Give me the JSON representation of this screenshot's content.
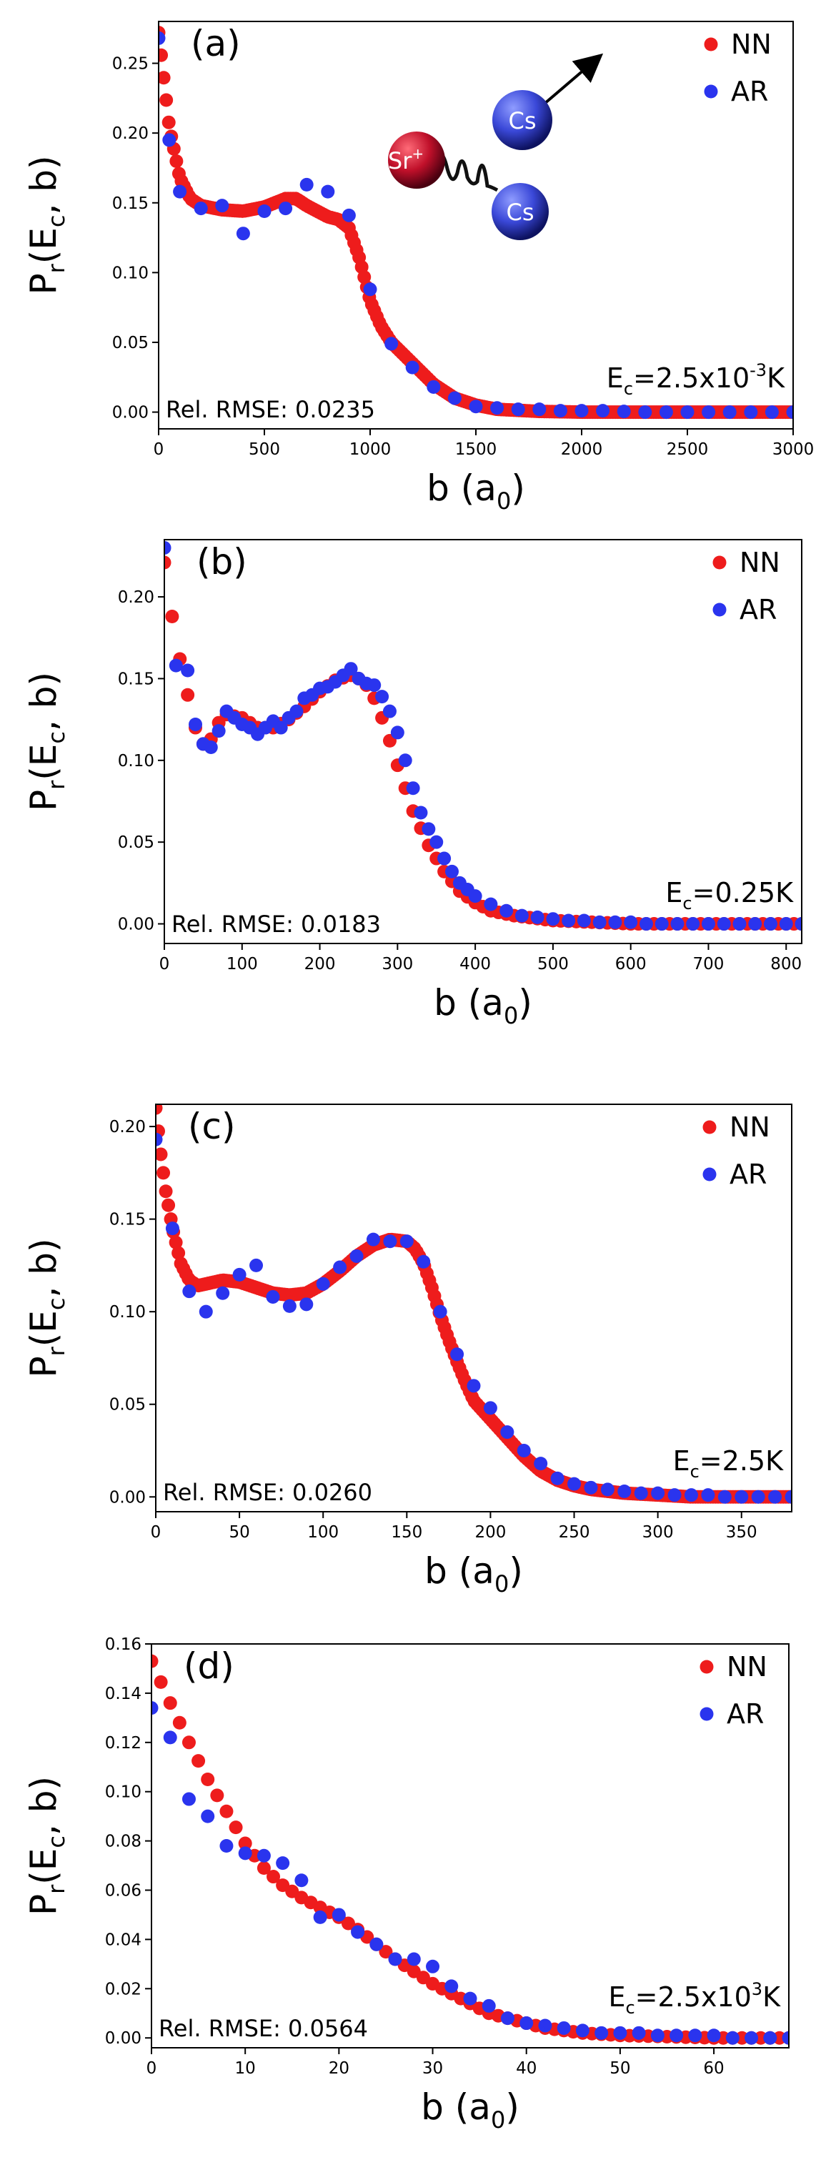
{
  "colors": {
    "nn": "#ee1c1c",
    "ar": "#2a34ee",
    "axis": "#000000",
    "sr": "#c0102a",
    "cs": "#3a48d8"
  },
  "chart_data": [
    {
      "id": "a",
      "type": "scatter",
      "panel_label": "(a)",
      "xlabel": "b (a",
      "xlabel_sub": "0",
      "xlabel_close": ")",
      "ylabel": "P",
      "ylabel_sub1": "r",
      "ylabel_mid": "(E",
      "ylabel_sub2": "c",
      "ylabel_end": ", b)",
      "xlim": [
        0,
        3000
      ],
      "ylim": [
        -0.012,
        0.28
      ],
      "xticks": [
        0,
        500,
        1000,
        1500,
        2000,
        2500,
        3000
      ],
      "xtick_labels": [
        "0",
        "500",
        "1000",
        "1500",
        "2000",
        "2500",
        "3000"
      ],
      "yticks": [
        0.0,
        0.05,
        0.1,
        0.15,
        0.2,
        0.25
      ],
      "ytick_labels": [
        "0.00",
        "0.05",
        "0.10",
        "0.15",
        "0.20",
        "0.25"
      ],
      "legend": [
        "NN",
        "AR"
      ],
      "energy_prefix": "E",
      "energy_sub": "c",
      "energy_value": "=2.5x10",
      "energy_exp": "-3",
      "energy_unit": "K",
      "rmse_label": "Rel. RMSE: 0.0235",
      "inset": {
        "sr_label": "Sr",
        "sr_charge": "+",
        "cs_label": "Cs"
      },
      "nn_step": 12,
      "nn_curve": [
        [
          0,
          0.272
        ],
        [
          20,
          0.245
        ],
        [
          50,
          0.205
        ],
        [
          100,
          0.168
        ],
        [
          150,
          0.153
        ],
        [
          200,
          0.148
        ],
        [
          300,
          0.145
        ],
        [
          400,
          0.144
        ],
        [
          500,
          0.147
        ],
        [
          600,
          0.153
        ],
        [
          650,
          0.153
        ],
        [
          700,
          0.148
        ],
        [
          800,
          0.14
        ],
        [
          850,
          0.138
        ],
        [
          900,
          0.132
        ],
        [
          950,
          0.11
        ],
        [
          1000,
          0.08
        ],
        [
          1050,
          0.062
        ],
        [
          1100,
          0.05
        ],
        [
          1200,
          0.035
        ],
        [
          1300,
          0.02
        ],
        [
          1400,
          0.01
        ],
        [
          1500,
          0.005
        ],
        [
          1600,
          0.002
        ],
        [
          1800,
          0.0005
        ],
        [
          2000,
          0.0
        ],
        [
          3000,
          0.0
        ]
      ],
      "ar": {
        "x": [
          0,
          50,
          100,
          200,
          300,
          400,
          500,
          600,
          700,
          800,
          900,
          1000,
          1100,
          1200,
          1300,
          1400,
          1500,
          1600,
          1700,
          1800,
          1900,
          2000,
          2100,
          2200,
          2300,
          2400,
          2500,
          2600,
          2700,
          2800,
          2900,
          3000
        ],
        "y": [
          0.268,
          0.195,
          0.158,
          0.146,
          0.148,
          0.128,
          0.144,
          0.146,
          0.163,
          0.158,
          0.141,
          0.088,
          0.049,
          0.032,
          0.018,
          0.01,
          0.004,
          0.003,
          0.002,
          0.002,
          0.001,
          0.001,
          0.001,
          0.0005,
          0.0,
          0.0,
          0.0,
          0.0,
          0.0,
          0.0,
          0.0,
          0.0
        ]
      }
    },
    {
      "id": "b",
      "type": "scatter",
      "panel_label": "(b)",
      "xlabel": "b (a",
      "xlabel_sub": "0",
      "xlabel_close": ")",
      "ylabel": "P",
      "ylabel_sub1": "r",
      "ylabel_mid": "(E",
      "ylabel_sub2": "c",
      "ylabel_end": ", b)",
      "xlim": [
        0,
        820
      ],
      "ylim": [
        -0.012,
        0.235
      ],
      "xticks": [
        0,
        100,
        200,
        300,
        400,
        500,
        600,
        700,
        800
      ],
      "xtick_labels": [
        "0",
        "100",
        "200",
        "300",
        "400",
        "500",
        "600",
        "700",
        "800"
      ],
      "yticks": [
        0.0,
        0.05,
        0.1,
        0.15,
        0.2
      ],
      "ytick_labels": [
        "0.00",
        "0.05",
        "0.10",
        "0.15",
        "0.20"
      ],
      "legend": [
        "NN",
        "AR"
      ],
      "energy_prefix": "E",
      "energy_sub": "c",
      "energy_value": "=0.25K",
      "energy_exp": "",
      "energy_unit": "",
      "rmse_label": "Rel. RMSE: 0.0183",
      "nn_step": 10,
      "nn_curve": [
        [
          0,
          0.221
        ],
        [
          10,
          0.188
        ],
        [
          20,
          0.162
        ],
        [
          30,
          0.14
        ],
        [
          40,
          0.12
        ],
        [
          50,
          0.11
        ],
        [
          60,
          0.113
        ],
        [
          70,
          0.123
        ],
        [
          80,
          0.128
        ],
        [
          100,
          0.126
        ],
        [
          120,
          0.12
        ],
        [
          140,
          0.12
        ],
        [
          160,
          0.125
        ],
        [
          180,
          0.133
        ],
        [
          200,
          0.142
        ],
        [
          220,
          0.149
        ],
        [
          240,
          0.152
        ],
        [
          250,
          0.15
        ],
        [
          260,
          0.146
        ],
        [
          270,
          0.138
        ],
        [
          280,
          0.126
        ],
        [
          290,
          0.112
        ],
        [
          300,
          0.097
        ],
        [
          310,
          0.083
        ],
        [
          320,
          0.069
        ],
        [
          340,
          0.048
        ],
        [
          360,
          0.032
        ],
        [
          380,
          0.02
        ],
        [
          400,
          0.013
        ],
        [
          420,
          0.008
        ],
        [
          450,
          0.005
        ],
        [
          500,
          0.002
        ],
        [
          550,
          0.001
        ],
        [
          600,
          0.0
        ],
        [
          820,
          0.0
        ]
      ],
      "ar": {
        "x": [
          0,
          15,
          30,
          40,
          50,
          60,
          70,
          80,
          90,
          100,
          110,
          120,
          130,
          140,
          150,
          160,
          170,
          180,
          190,
          200,
          210,
          220,
          230,
          240,
          250,
          260,
          270,
          280,
          290,
          300,
          310,
          320,
          330,
          340,
          350,
          360,
          370,
          380,
          390,
          400,
          420,
          440,
          460,
          480,
          500,
          520,
          540,
          560,
          580,
          600,
          620,
          640,
          660,
          680,
          700,
          720,
          740,
          760,
          780,
          800,
          820
        ],
        "y": [
          0.23,
          0.158,
          0.155,
          0.122,
          0.11,
          0.108,
          0.118,
          0.13,
          0.126,
          0.122,
          0.12,
          0.116,
          0.12,
          0.124,
          0.12,
          0.126,
          0.13,
          0.138,
          0.14,
          0.144,
          0.145,
          0.148,
          0.152,
          0.156,
          0.15,
          0.147,
          0.146,
          0.139,
          0.13,
          0.117,
          0.1,
          0.083,
          0.068,
          0.058,
          0.05,
          0.04,
          0.032,
          0.025,
          0.021,
          0.017,
          0.012,
          0.008,
          0.005,
          0.004,
          0.003,
          0.002,
          0.002,
          0.001,
          0.001,
          0.001,
          0.0,
          0.0,
          0.0,
          0.0,
          0.0,
          0.0,
          0.0,
          0.0,
          0.0,
          0.0,
          0.0
        ]
      }
    },
    {
      "id": "c",
      "type": "scatter",
      "panel_label": "(c)",
      "xlabel": "b (a",
      "xlabel_sub": "0",
      "xlabel_close": ")",
      "ylabel": "P",
      "ylabel_sub1": "r",
      "ylabel_mid": "(E",
      "ylabel_sub2": "c",
      "ylabel_end": ", b)",
      "xlim": [
        0,
        380
      ],
      "ylim": [
        -0.008,
        0.212
      ],
      "xticks": [
        0,
        50,
        100,
        150,
        200,
        250,
        300,
        350
      ],
      "xtick_labels": [
        "0",
        "50",
        "100",
        "150",
        "200",
        "250",
        "300",
        "350"
      ],
      "yticks": [
        0.0,
        0.05,
        0.1,
        0.15,
        0.2
      ],
      "ytick_labels": [
        "0.00",
        "0.05",
        "0.10",
        "0.15",
        "0.20"
      ],
      "legend": [
        "NN",
        "AR"
      ],
      "energy_prefix": "E",
      "energy_sub": "c",
      "energy_value": "=2.5K",
      "energy_exp": "",
      "energy_unit": "",
      "rmse_label": "Rel. RMSE: 0.0260",
      "nn_step": 1.5,
      "nn_curve": [
        [
          0,
          0.21
        ],
        [
          3,
          0.185
        ],
        [
          6,
          0.165
        ],
        [
          10,
          0.145
        ],
        [
          15,
          0.126
        ],
        [
          20,
          0.117
        ],
        [
          25,
          0.114
        ],
        [
          30,
          0.115
        ],
        [
          40,
          0.117
        ],
        [
          50,
          0.116
        ],
        [
          60,
          0.113
        ],
        [
          70,
          0.11
        ],
        [
          80,
          0.109
        ],
        [
          90,
          0.11
        ],
        [
          100,
          0.115
        ],
        [
          110,
          0.122
        ],
        [
          120,
          0.13
        ],
        [
          130,
          0.136
        ],
        [
          140,
          0.139
        ],
        [
          150,
          0.138
        ],
        [
          155,
          0.134
        ],
        [
          160,
          0.126
        ],
        [
          165,
          0.113
        ],
        [
          170,
          0.098
        ],
        [
          175,
          0.085
        ],
        [
          180,
          0.073
        ],
        [
          185,
          0.062
        ],
        [
          190,
          0.052
        ],
        [
          200,
          0.042
        ],
        [
          210,
          0.032
        ],
        [
          220,
          0.022
        ],
        [
          230,
          0.014
        ],
        [
          240,
          0.009
        ],
        [
          250,
          0.006
        ],
        [
          260,
          0.004
        ],
        [
          280,
          0.002
        ],
        [
          300,
          0.001
        ],
        [
          320,
          0.0
        ],
        [
          380,
          0.0
        ]
      ],
      "ar": {
        "x": [
          0,
          10,
          20,
          30,
          40,
          50,
          60,
          70,
          80,
          90,
          100,
          110,
          120,
          130,
          140,
          150,
          160,
          170,
          180,
          190,
          200,
          210,
          220,
          230,
          240,
          250,
          260,
          270,
          280,
          290,
          300,
          310,
          320,
          330,
          340,
          350,
          360,
          370,
          380
        ],
        "y": [
          0.193,
          0.145,
          0.111,
          0.1,
          0.11,
          0.12,
          0.125,
          0.108,
          0.103,
          0.104,
          0.115,
          0.124,
          0.13,
          0.139,
          0.138,
          0.138,
          0.127,
          0.1,
          0.077,
          0.06,
          0.048,
          0.035,
          0.025,
          0.018,
          0.01,
          0.007,
          0.005,
          0.004,
          0.003,
          0.002,
          0.002,
          0.001,
          0.001,
          0.001,
          0.0,
          0.0,
          0.0,
          0.0,
          0.0
        ]
      }
    },
    {
      "id": "d",
      "type": "scatter",
      "panel_label": "(d)",
      "xlabel": "b (a",
      "xlabel_sub": "0",
      "xlabel_close": ")",
      "ylabel": "P",
      "ylabel_sub1": "r",
      "ylabel_mid": "(E",
      "ylabel_sub2": "c",
      "ylabel_end": ", b)",
      "xlim": [
        0,
        68
      ],
      "ylim": [
        -0.004,
        0.16
      ],
      "xticks": [
        0,
        10,
        20,
        30,
        40,
        50,
        60
      ],
      "xtick_labels": [
        "0",
        "10",
        "20",
        "30",
        "40",
        "50",
        "60"
      ],
      "yticks": [
        0.0,
        0.02,
        0.04,
        0.06,
        0.08,
        0.1,
        0.12,
        0.14,
        0.16
      ],
      "ytick_labels": [
        "0.00",
        "0.02",
        "0.04",
        "0.06",
        "0.08",
        "0.10",
        "0.12",
        "0.14",
        "0.16"
      ],
      "legend": [
        "NN",
        "AR"
      ],
      "energy_prefix": "E",
      "energy_sub": "c",
      "energy_value": "=2.5x10",
      "energy_exp": "3",
      "energy_unit": "K",
      "rmse_label": "Rel. RMSE: 0.0564",
      "nn_step": 1,
      "nn_curve": [
        [
          0,
          0.153
        ],
        [
          2,
          0.136
        ],
        [
          4,
          0.12
        ],
        [
          6,
          0.105
        ],
        [
          8,
          0.092
        ],
        [
          10,
          0.079
        ],
        [
          12,
          0.069
        ],
        [
          14,
          0.062
        ],
        [
          16,
          0.057
        ],
        [
          18,
          0.053
        ],
        [
          20,
          0.049
        ],
        [
          22,
          0.044
        ],
        [
          24,
          0.038
        ],
        [
          26,
          0.032
        ],
        [
          28,
          0.027
        ],
        [
          30,
          0.022
        ],
        [
          32,
          0.018
        ],
        [
          34,
          0.014
        ],
        [
          36,
          0.01
        ],
        [
          38,
          0.008
        ],
        [
          40,
          0.006
        ],
        [
          42,
          0.004
        ],
        [
          44,
          0.003
        ],
        [
          46,
          0.002
        ],
        [
          48,
          0.0015
        ],
        [
          50,
          0.001
        ],
        [
          55,
          0.0005
        ],
        [
          60,
          0.0
        ],
        [
          68,
          0.0
        ]
      ],
      "ar": {
        "x": [
          0,
          2,
          4,
          6,
          8,
          10,
          12,
          14,
          16,
          18,
          20,
          22,
          24,
          26,
          28,
          30,
          32,
          34,
          36,
          38,
          40,
          42,
          44,
          46,
          48,
          50,
          52,
          54,
          56,
          58,
          60,
          62,
          64,
          66,
          68
        ],
        "y": [
          0.134,
          0.122,
          0.097,
          0.09,
          0.078,
          0.075,
          0.074,
          0.071,
          0.064,
          0.049,
          0.05,
          0.043,
          0.038,
          0.032,
          0.032,
          0.029,
          0.021,
          0.016,
          0.013,
          0.008,
          0.006,
          0.005,
          0.004,
          0.003,
          0.002,
          0.002,
          0.002,
          0.001,
          0.001,
          0.001,
          0.001,
          0.0,
          0.0,
          0.0,
          0.0
        ]
      }
    }
  ]
}
